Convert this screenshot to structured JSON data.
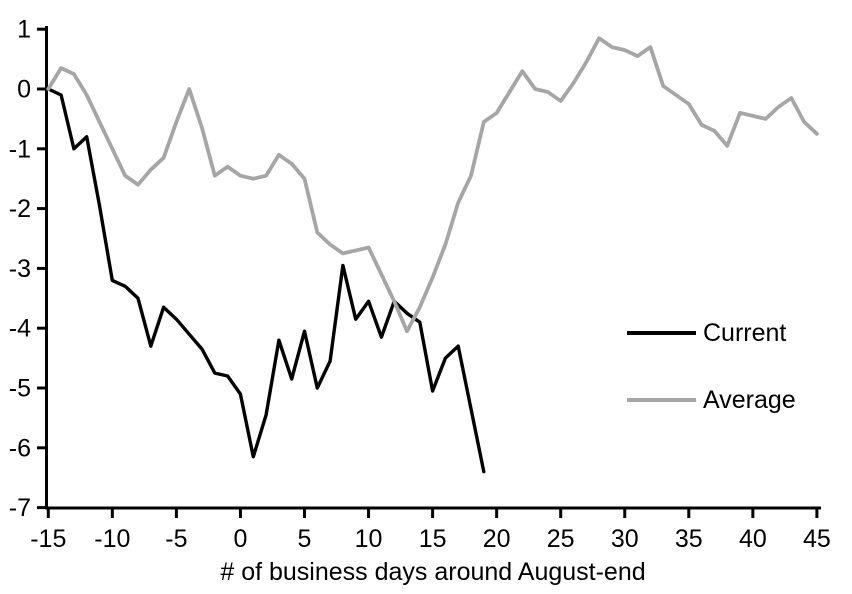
{
  "chart_data": {
    "type": "line",
    "title": "",
    "xlabel": "# of business days around August-end",
    "ylabel": "",
    "xlim": [
      -15,
      45
    ],
    "ylim": [
      -7,
      1
    ],
    "xticks": [
      -15,
      -10,
      -5,
      0,
      5,
      10,
      15,
      20,
      25,
      30,
      35,
      40,
      45
    ],
    "yticks": [
      1,
      0,
      -1,
      -2,
      -3,
      -4,
      -5,
      -6,
      -7
    ],
    "grid": false,
    "legend_position": "middle-right",
    "axis_color": "#000000",
    "series": [
      {
        "name": "Current",
        "color": "#000000",
        "x_start": -15,
        "x_end": 19,
        "values": [
          0,
          -0.1,
          -1.0,
          -0.8,
          -1.95,
          -3.2,
          -3.3,
          -3.5,
          -4.3,
          -3.65,
          -3.85,
          -4.1,
          -4.35,
          -4.75,
          -4.8,
          -5.1,
          -6.15,
          -5.45,
          -4.2,
          -4.85,
          -4.05,
          -5.0,
          -4.55,
          -2.95,
          -3.85,
          -3.55,
          -4.15,
          -3.55,
          -3.75,
          -3.9,
          -5.05,
          -4.5,
          -4.3,
          -5.35,
          -6.4
        ]
      },
      {
        "name": "Average",
        "color": "#a6a6a6",
        "x_start": -15,
        "x_end": 45,
        "values": [
          0,
          0.35,
          0.25,
          -0.1,
          -0.55,
          -1.0,
          -1.45,
          -1.6,
          -1.35,
          -1.15,
          -0.55,
          0.0,
          -0.65,
          -1.45,
          -1.3,
          -1.45,
          -1.5,
          -1.45,
          -1.1,
          -1.25,
          -1.5,
          -2.4,
          -2.6,
          -2.75,
          -2.7,
          -2.65,
          -3.1,
          -3.55,
          -4.05,
          -3.65,
          -3.15,
          -2.6,
          -1.9,
          -1.45,
          -0.55,
          -0.4,
          -0.05,
          0.3,
          0.0,
          -0.05,
          -0.2,
          0.1,
          0.45,
          0.85,
          0.7,
          0.65,
          0.55,
          0.7,
          0.05,
          -0.1,
          -0.25,
          -0.6,
          -0.7,
          -0.95,
          -0.4,
          -0.45,
          -0.5,
          -0.3,
          -0.15,
          -0.55,
          -0.75
        ]
      }
    ]
  }
}
